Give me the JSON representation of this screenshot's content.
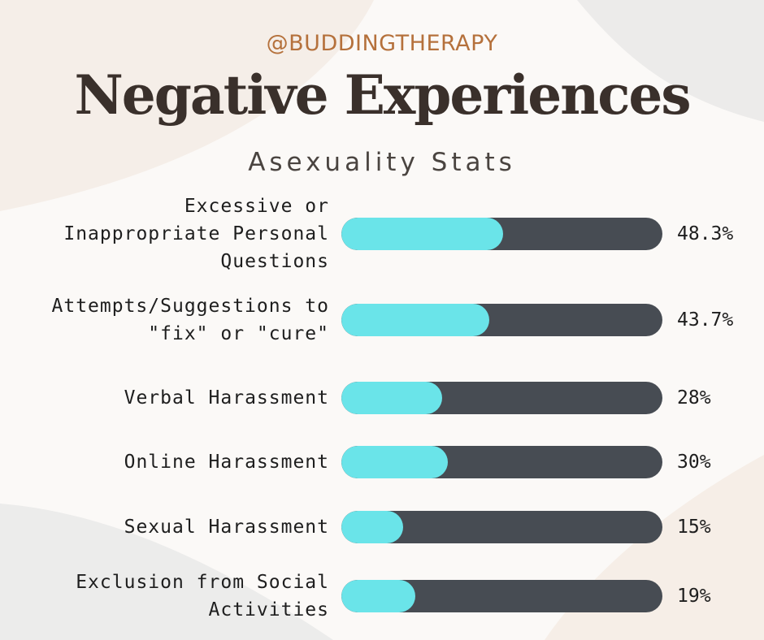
{
  "handle": "@BUDDINGTHERAPY",
  "title": "Negative Experiences",
  "subtitle": "Asexuality Stats",
  "colors": {
    "fill": "#6ae4e9",
    "track": "#474c53",
    "title": "#3a302b",
    "handle": "#b5713c"
  },
  "chart_data": {
    "type": "bar",
    "orientation": "horizontal",
    "categories": [
      "Excessive or Inappropriate Personal Questions",
      "Attempts/Suggestions to \"fix\" or \"cure\"",
      "Verbal Harassment",
      "Online Harassment",
      "Sexual Harassment",
      "Exclusion from Social Activities"
    ],
    "values": [
      48.3,
      43.7,
      28,
      30,
      15,
      19
    ],
    "value_labels": [
      "48.3%",
      "43.7%",
      "28%",
      "30%",
      "15%",
      "19%"
    ],
    "xlim": [
      0,
      100
    ]
  }
}
